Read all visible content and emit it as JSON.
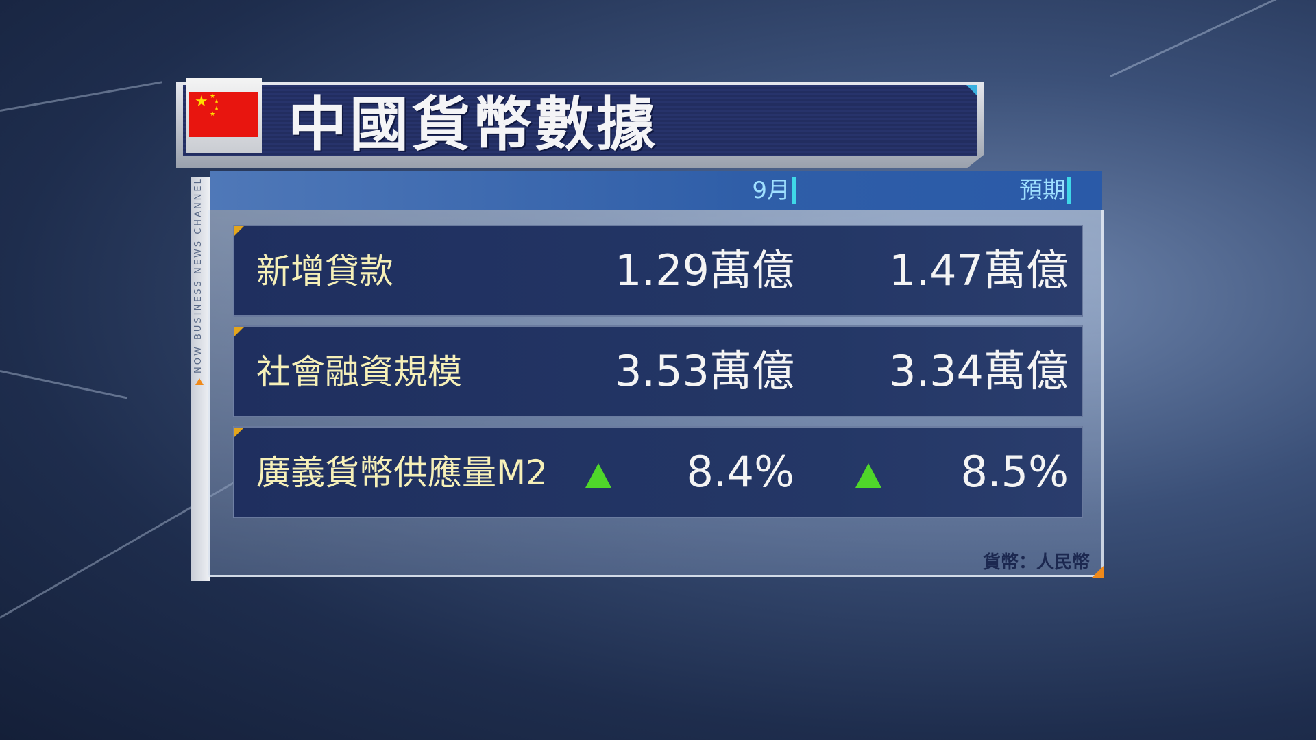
{
  "title": "中國貨幣數據",
  "channel": "NOW BUSINESS NEWS CHANNEL",
  "columns": [
    "9月",
    "預期"
  ],
  "rows": [
    {
      "label": "新增貸款",
      "actual": "1.29萬億",
      "expected": "1.47萬億",
      "arrows": false
    },
    {
      "label": "社會融資規模",
      "actual": "3.53萬億",
      "expected": "3.34萬億",
      "arrows": false
    },
    {
      "label": "廣義貨幣供應量M2",
      "actual": "8.4%",
      "expected": "8.5%",
      "arrows": true,
      "arrow_direction": "up"
    }
  ],
  "footer": "貨幣：人民幣",
  "colors": {
    "label": "#f6f0b8",
    "up_arrow": "#4fd62a",
    "header_text": "#9fe0ff",
    "accent": "#e3a51c"
  }
}
